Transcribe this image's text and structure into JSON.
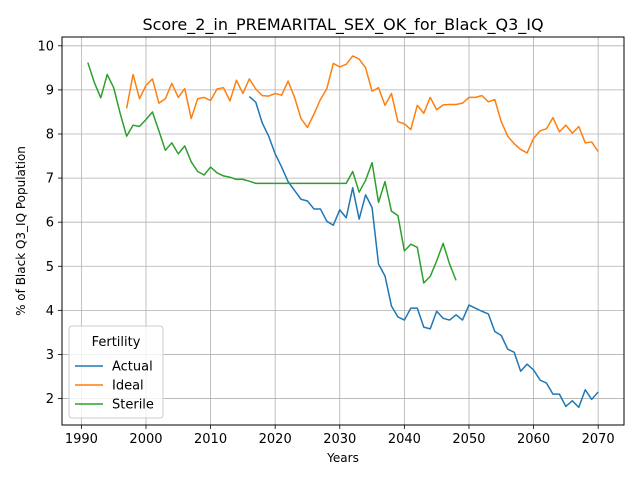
{
  "chart_data": {
    "type": "line",
    "title": "Score_2_in_PREMARITAL_SEX_OK_for_Black_Q3_IQ",
    "xlabel": "Years",
    "ylabel": "% of Black Q3_IQ Population",
    "xlim": [
      1987,
      2074
    ],
    "ylim": [
      1.4,
      10.2
    ],
    "xticks": [
      1990,
      2000,
      2010,
      2020,
      2030,
      2040,
      2050,
      2060,
      2070
    ],
    "yticks": [
      2,
      3,
      4,
      5,
      6,
      7,
      8,
      9,
      10
    ],
    "grid": true,
    "legend": {
      "title": "Fertility",
      "placement": "lower-left"
    },
    "series": [
      {
        "name": "Actual",
        "color": "#1f77b4",
        "x": [
          2016,
          2017,
          2018,
          2019,
          2020,
          2021,
          2022,
          2023,
          2024,
          2025,
          2026,
          2027,
          2028,
          2029,
          2030,
          2031,
          2032,
          2033,
          2034,
          2035,
          2036,
          2037,
          2038,
          2039,
          2040,
          2041,
          2042,
          2043,
          2044,
          2045,
          2046,
          2047,
          2048,
          2049,
          2050,
          2051,
          2052,
          2053,
          2054,
          2055,
          2056,
          2057,
          2058,
          2059,
          2060,
          2061,
          2062,
          2063,
          2064,
          2065,
          2066,
          2067,
          2068,
          2069,
          2070
        ],
        "y": [
          8.85,
          8.72,
          8.25,
          7.95,
          7.55,
          7.25,
          6.92,
          6.72,
          6.52,
          6.48,
          6.3,
          6.3,
          6.02,
          5.93,
          6.28,
          6.1,
          6.78,
          6.07,
          6.62,
          6.33,
          5.05,
          4.78,
          4.1,
          3.85,
          3.78,
          4.05,
          4.05,
          3.62,
          3.58,
          3.98,
          3.82,
          3.78,
          3.9,
          3.78,
          4.12,
          4.05,
          3.98,
          3.92,
          3.52,
          3.43,
          3.12,
          3.05,
          2.62,
          2.78,
          2.65,
          2.42,
          2.35,
          2.1,
          2.1,
          1.82,
          1.95,
          1.8,
          2.2,
          1.98,
          2.15
        ]
      },
      {
        "name": "Ideal",
        "color": "#ff7f0e",
        "x": [
          1997,
          1998,
          1999,
          2000,
          2001,
          2002,
          2003,
          2004,
          2005,
          2006,
          2007,
          2008,
          2009,
          2010,
          2011,
          2012,
          2013,
          2014,
          2015,
          2016,
          2017,
          2018,
          2019,
          2020,
          2021,
          2022,
          2023,
          2024,
          2025,
          2026,
          2027,
          2028,
          2029,
          2030,
          2031,
          2032,
          2033,
          2034,
          2035,
          2036,
          2037,
          2038,
          2039,
          2040,
          2041,
          2042,
          2043,
          2044,
          2045,
          2046,
          2047,
          2048,
          2049,
          2050,
          2051,
          2052,
          2053,
          2054,
          2055,
          2056,
          2057,
          2058,
          2059,
          2060,
          2061,
          2062,
          2063,
          2064,
          2065,
          2066,
          2067,
          2068,
          2069,
          2070
        ],
        "y": [
          8.58,
          9.35,
          8.8,
          9.1,
          9.25,
          8.7,
          8.8,
          9.15,
          8.83,
          9.03,
          8.35,
          8.8,
          8.83,
          8.76,
          9.02,
          9.05,
          8.75,
          9.22,
          8.92,
          9.25,
          9.02,
          8.87,
          8.86,
          8.92,
          8.88,
          9.2,
          8.83,
          8.35,
          8.15,
          8.45,
          8.78,
          9.03,
          9.6,
          9.52,
          9.58,
          9.77,
          9.7,
          9.5,
          8.97,
          9.05,
          8.65,
          8.92,
          8.28,
          8.23,
          8.1,
          8.65,
          8.47,
          8.83,
          8.55,
          8.66,
          8.67,
          8.67,
          8.7,
          8.83,
          8.83,
          8.87,
          8.73,
          8.78,
          8.28,
          7.95,
          7.78,
          7.65,
          7.57,
          7.9,
          8.07,
          8.12,
          8.37,
          8.05,
          8.2,
          8.02,
          8.17,
          7.8,
          7.82,
          7.6
        ]
      },
      {
        "name": "Sterile",
        "color": "#2ca02c",
        "x": [
          1991,
          1992,
          1993,
          1994,
          1995,
          1996,
          1997,
          1998,
          1999,
          2000,
          2001,
          2002,
          2003,
          2004,
          2005,
          2006,
          2007,
          2008,
          2009,
          2010,
          2011,
          2012,
          2013,
          2014,
          2015,
          2016,
          2017,
          2018,
          2019,
          2020,
          2021,
          2022,
          2023,
          2024,
          2025,
          2026,
          2027,
          2028,
          2029,
          2030,
          2031,
          2032,
          2033,
          2034,
          2035,
          2036,
          2037,
          2038,
          2039,
          2040,
          2041,
          2042,
          2043,
          2044,
          2045,
          2046,
          2047,
          2048
        ],
        "y": [
          9.62,
          9.17,
          8.82,
          9.35,
          9.05,
          8.47,
          7.95,
          8.2,
          8.17,
          8.33,
          8.5,
          8.07,
          7.63,
          7.8,
          7.55,
          7.73,
          7.37,
          7.15,
          7.07,
          7.25,
          7.12,
          7.05,
          7.02,
          6.97,
          6.97,
          6.93,
          6.88,
          6.88,
          6.88,
          6.88,
          6.88,
          6.88,
          6.88,
          6.88,
          6.88,
          6.88,
          6.88,
          6.88,
          6.88,
          6.88,
          6.88,
          7.15,
          6.68,
          6.95,
          7.35,
          6.45,
          6.92,
          6.25,
          6.15,
          5.35,
          5.5,
          5.43,
          4.62,
          4.77,
          5.12,
          5.52,
          5.05,
          4.68
        ]
      }
    ]
  }
}
